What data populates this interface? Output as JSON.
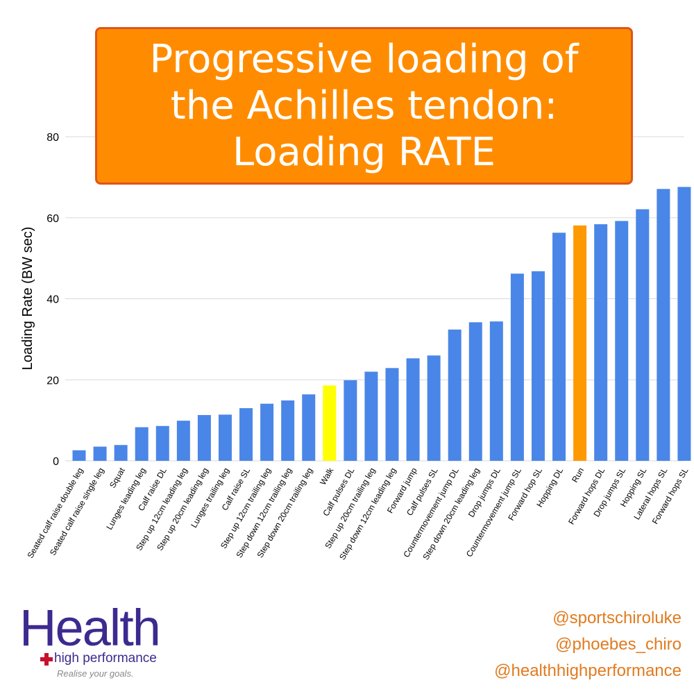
{
  "title": {
    "lines": [
      "Progressive loading of",
      "the Achilles tendon:",
      "Loading RATE"
    ]
  },
  "chart_data": {
    "type": "bar",
    "ylabel": "Loading Rate (BW sec)",
    "xlabel": "",
    "ylim": [
      0,
      80
    ],
    "yticks": [
      0,
      20,
      40,
      60,
      80
    ],
    "grid": true,
    "colors": {
      "default": "#4a86e8",
      "highlight_walk": "#ffff00",
      "highlight_run": "#ff9900"
    },
    "categories": [
      "Seated calf raise double leg",
      "Seated calf raise single leg",
      "Squat",
      "Lunges leading leg",
      "Calf raise DL",
      "Step up 12cm leading leg",
      "Step up 20cm leading leg",
      "Lunges trailing leg",
      "Calf raise SL",
      "Step up 12cm trailing leg",
      "Step down 12cm trailing leg",
      "Step down 20cm trailing leg",
      "Walk",
      "Calf pulses DL",
      "Step up 20cm trailing leg",
      "Step down 12cm leading leg",
      "Forward jump",
      "Calf pulses SL",
      "Countermovement jump DL",
      "Step down 20cm leading leg",
      "Drop jumps DL",
      "Countermovement jump SL",
      "Forward hop SL",
      "Hopping DL",
      "Run",
      "Forward hops DL",
      "Drop jumps SL",
      "Hopping SL",
      "Lateral hops SL",
      "Forward hops SL"
    ],
    "values": [
      2.6,
      3.5,
      3.9,
      8.3,
      8.6,
      9.9,
      11.3,
      11.4,
      13.0,
      14.1,
      14.9,
      16.4,
      18.6,
      19.9,
      22.0,
      22.9,
      25.3,
      26.0,
      32.4,
      34.2,
      34.4,
      46.2,
      46.8,
      56.3,
      58.1,
      58.4,
      59.2,
      62.1,
      67.1,
      67.6
    ],
    "bar_colors": [
      "#4a86e8",
      "#4a86e8",
      "#4a86e8",
      "#4a86e8",
      "#4a86e8",
      "#4a86e8",
      "#4a86e8",
      "#4a86e8",
      "#4a86e8",
      "#4a86e8",
      "#4a86e8",
      "#4a86e8",
      "#ffff00",
      "#4a86e8",
      "#4a86e8",
      "#4a86e8",
      "#4a86e8",
      "#4a86e8",
      "#4a86e8",
      "#4a86e8",
      "#4a86e8",
      "#4a86e8",
      "#4a86e8",
      "#4a86e8",
      "#ff9900",
      "#4a86e8",
      "#4a86e8",
      "#4a86e8",
      "#4a86e8",
      "#4a86e8"
    ]
  },
  "logo": {
    "main": "Health",
    "sub": "high performance",
    "tagline": "Realise your goals."
  },
  "handles": [
    "@sportschiroluke",
    "@phoebes_chiro",
    "@healthhighperformance"
  ]
}
